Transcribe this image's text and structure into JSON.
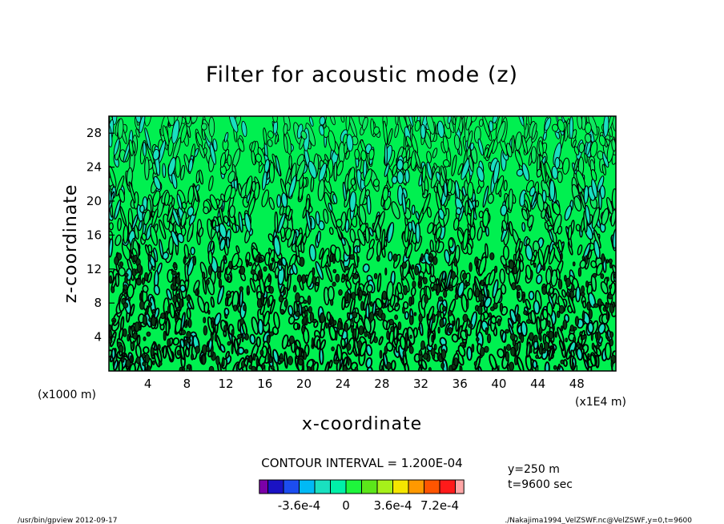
{
  "chart_data": {
    "type": "heatmap",
    "title": "Filter for acoustic mode (z)",
    "xlabel": "x-coordinate",
    "ylabel": "z-coordinate",
    "x_unit_left": "(x1000 m)",
    "x_unit_right": "(x1E4 m)",
    "xlim": [
      0,
      52
    ],
    "ylim": [
      0,
      30
    ],
    "x_ticks": [
      4,
      8,
      12,
      16,
      20,
      24,
      28,
      32,
      36,
      40,
      44,
      48
    ],
    "y_ticks": [
      4,
      8,
      12,
      16,
      20,
      24,
      28
    ],
    "contour_interval_text": "CONTOUR INTERVAL = 1.200E-04",
    "colorbar": {
      "colors": [
        "#7b00a8",
        "#1a12c4",
        "#1c4df0",
        "#00b9f5",
        "#19e0c0",
        "#00f0a8",
        "#1ef53c",
        "#5ce61a",
        "#a6f01a",
        "#f5e600",
        "#ff9900",
        "#ff5500",
        "#ff1a1a",
        "#ffa6a6"
      ],
      "labels": [
        "-3.6e-4",
        "0",
        "3.6e-4",
        "7.2e-4"
      ],
      "label_positions": [
        -0.00036,
        0,
        0.00036,
        0.00072
      ],
      "min": -0.00072,
      "max": 0.00096
    },
    "side_info": [
      "y=250 m",
      "t=9600 sec"
    ],
    "field_colors": {
      "dominant": "#00f050",
      "secondary": "#19e0c0",
      "contour_line": "#000000"
    }
  },
  "footer": {
    "left": "/usr/bin/gpview  2012-09-17",
    "right": "./Nakajima1994_VelZSWF.nc@VelZSWF,y=0,t=9600"
  }
}
